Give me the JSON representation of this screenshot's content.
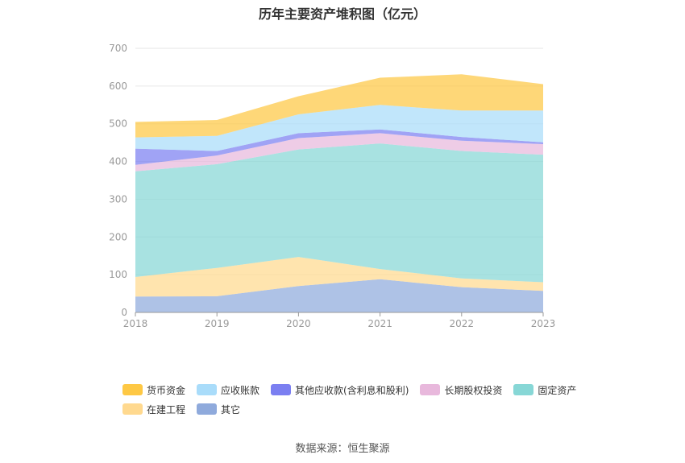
{
  "chart_data": {
    "type": "area",
    "stacked": true,
    "title": "历年主要资产堆积图（亿元）",
    "categories": [
      "2018",
      "2019",
      "2020",
      "2021",
      "2022",
      "2023"
    ],
    "ylim": [
      0,
      700
    ],
    "yticks": [
      0,
      100,
      200,
      300,
      400,
      500,
      600,
      700
    ],
    "grid": true,
    "legend_position": "bottom",
    "series": [
      {
        "name": "其它",
        "color": "#8faadc",
        "values": [
          42,
          43,
          70,
          88,
          67,
          57
        ]
      },
      {
        "name": "在建工程",
        "color": "#ffd98f",
        "values": [
          52,
          75,
          77,
          27,
          23,
          23
        ]
      },
      {
        "name": "固定资产",
        "color": "#87d7d6",
        "values": [
          280,
          275,
          285,
          333,
          338,
          338
        ]
      },
      {
        "name": "长期股权投资",
        "color": "#e8b8dc",
        "values": [
          17,
          23,
          30,
          27,
          27,
          28
        ]
      },
      {
        "name": "其他应收款(含利息和股利)",
        "color": "#7b7ff1",
        "values": [
          43,
          12,
          13,
          10,
          10,
          5
        ]
      },
      {
        "name": "应收账款",
        "color": "#a9dcfa",
        "values": [
          30,
          40,
          50,
          65,
          70,
          84
        ]
      },
      {
        "name": "货币资金",
        "color": "#fec844",
        "values": [
          41,
          42,
          48,
          72,
          96,
          70
        ]
      }
    ]
  },
  "legend_order": [
    "货币资金",
    "应收账款",
    "其他应收款(含利息和股利)",
    "长期股权投资",
    "固定资产",
    "在建工程",
    "其它"
  ],
  "source": "数据来源：恒生聚源"
}
